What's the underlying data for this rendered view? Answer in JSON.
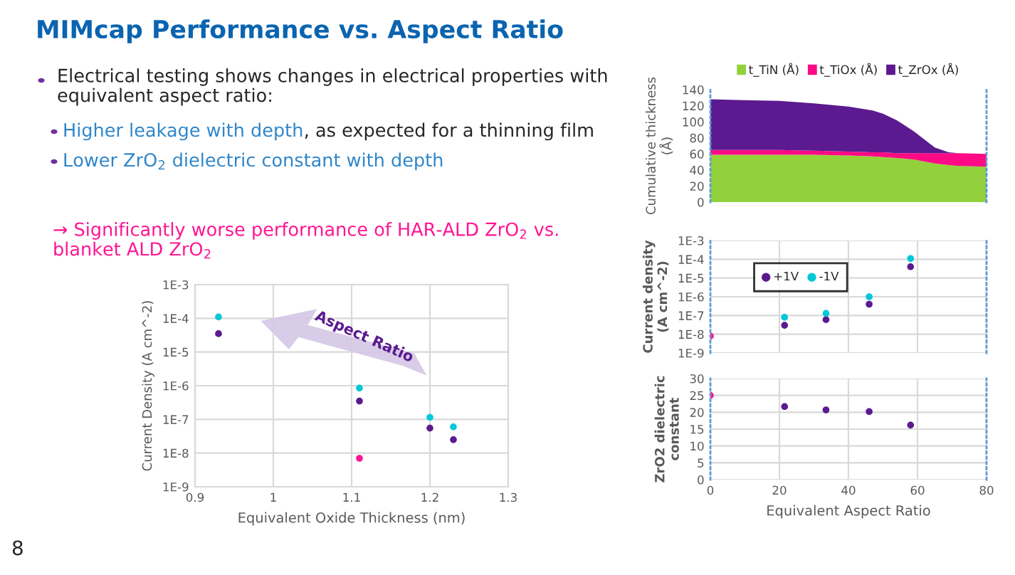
{
  "chart_data": [
    {
      "type": "other",
      "title": "MIMcap Performance vs. Aspect Ratio",
      "annotations": [
        "Electrical testing shows changes in electrical properties with\nequivalent aspect ratio:",
        "Higher leakage with depth",
        ", as expected for a thinning film",
        "Lower ZrO$_{2}$ dielectric constant with depth",
        "→ Significantly worse performance of HAR-ALD ZrO$_{2}$ vs.\nblanket ALD ZrO$_{2}$",
        "8"
      ]
    },
    {
      "type": "scatter",
      "xlabel": "Equivalent Oxide Thickness (nm)",
      "ylabel": "Current Density (A cm^-2)",
      "log": "y",
      "grid": true,
      "legend": false,
      "marker": "circle",
      "xlim": [
        0.9,
        1.3
      ],
      "xticks": [
        0.9,
        1,
        1.1,
        1.2,
        1.3
      ],
      "ylim": [
        1e-09,
        0.001
      ],
      "yticks": [
        {
          "value": 1e-09,
          "label": "1E-9"
        },
        {
          "value": 1e-08,
          "label": "1E-8"
        },
        {
          "value": 1e-07,
          "label": "1E-7"
        },
        {
          "value": 1e-06,
          "label": "1E-6"
        },
        {
          "value": 1e-05,
          "label": "1E-5"
        },
        {
          "value": 0.0001,
          "label": "1E-4"
        },
        {
          "value": 0.001,
          "label": "1E-3"
        }
      ],
      "annotations": [
        "Aspect Ratio"
      ],
      "series": [
        {
          "color": "#00c8d8",
          "x": [
            0.93,
            1.11,
            1.2,
            1.23
          ],
          "values": [
            0.00011,
            8.5e-07,
            1.15e-07,
            6e-08
          ]
        },
        {
          "color": "#5b1a8f",
          "x": [
            0.93,
            1.11,
            1.2,
            1.23
          ],
          "values": [
            3.5e-05,
            3.5e-07,
            5.5e-08,
            2.5e-08
          ]
        },
        {
          "color": "#ff1493",
          "x": [
            1.11
          ],
          "values": [
            7e-09
          ]
        }
      ]
    },
    {
      "type": "area",
      "stacked": true,
      "ylabel": "Cumulative thickness\n(Å)",
      "legend": "top",
      "tick_labels": "y",
      "x": [
        0,
        10,
        20,
        30,
        40,
        47,
        50,
        54,
        59,
        65,
        69,
        72,
        80
      ],
      "xlim": [
        0,
        80
      ],
      "ylim": [
        0,
        140
      ],
      "yticks": [
        0,
        20,
        40,
        60,
        80,
        100,
        120,
        140
      ],
      "series": [
        {
          "name": "t_TiN (Å)",
          "color": "#92d13c",
          "values": [
            59,
            59,
            59,
            59,
            58,
            57,
            56,
            55,
            53,
            48,
            46,
            45,
            44
          ]
        },
        {
          "name": "t_TiOx (Å)",
          "color": "#ff0a84",
          "values": [
            6,
            6,
            6,
            5,
            5,
            5,
            6,
            6,
            8,
            13,
            15,
            16,
            16
          ]
        },
        {
          "name": "t_ZrOx (Å)",
          "color": "#5b1a8f",
          "values": [
            63,
            62,
            61,
            59,
            56,
            52,
            48,
            41,
            27,
            7,
            1,
            0,
            0
          ]
        }
      ]
    },
    {
      "type": "scatter",
      "ylabel": "Current density\n(A cm^-2)",
      "log": "y",
      "grid": true,
      "legend": "top left",
      "tick_labels": "y",
      "marker": "circle",
      "xlim": [
        0,
        80
      ],
      "xticks": [
        0,
        20,
        40,
        60,
        80
      ],
      "ylim": [
        1e-09,
        0.001
      ],
      "yticks": [
        {
          "value": 1e-09,
          "label": "1E-9"
        },
        {
          "value": 1e-08,
          "label": "1E-8"
        },
        {
          "value": 1e-07,
          "label": "1E-7"
        },
        {
          "value": 1e-06,
          "label": "1E-6"
        },
        {
          "value": 1e-05,
          "label": "1E-5"
        },
        {
          "value": 0.0001,
          "label": "1E-4"
        },
        {
          "value": 0.001,
          "label": "1E-3"
        }
      ],
      "series": [
        {
          "name": "+1V",
          "color": "#5b1a8f",
          "x": [
            21.5,
            33.5,
            46,
            58
          ],
          "values": [
            3e-08,
            6e-08,
            4e-07,
            4e-05
          ]
        },
        {
          "name": "-1V",
          "color": "#00c8d8",
          "x": [
            21.5,
            33.5,
            46,
            58
          ],
          "values": [
            8e-08,
            1.3e-07,
            1e-06,
            0.00011
          ]
        },
        {
          "color": "#ff1493",
          "x": [
            0
          ],
          "values": [
            8e-09
          ]
        }
      ]
    },
    {
      "type": "scatter",
      "xlabel": "Equivalent Aspect Ratio",
      "ylabel": "ZrO2 dielectric\nconstant",
      "grid": true,
      "legend": false,
      "marker": "circle",
      "xlim": [
        0,
        80
      ],
      "xticks": [
        0,
        20,
        40,
        60,
        80
      ],
      "ylim": [
        0,
        30
      ],
      "yticks": [
        0,
        5,
        10,
        15,
        20,
        25,
        30
      ],
      "series": [
        {
          "color": "#ff1493",
          "x": [
            0
          ],
          "values": [
            25
          ]
        },
        {
          "color": "#5b1a8f",
          "x": [
            21.5,
            33.5,
            46,
            58
          ],
          "values": [
            21.7,
            20.7,
            20.2,
            16.2
          ]
        }
      ]
    }
  ]
}
